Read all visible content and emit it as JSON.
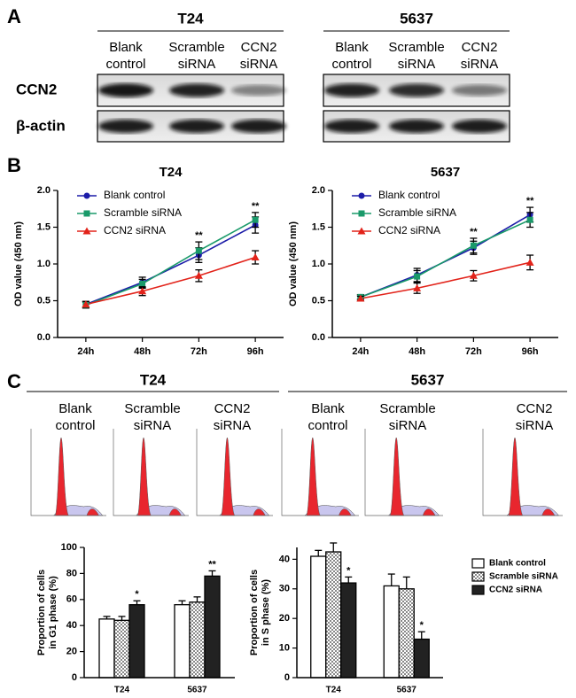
{
  "panel_labels": [
    "A",
    "B",
    "C"
  ],
  "blot": {
    "groups": [
      {
        "name": "T24",
        "lanes": [
          [
            "Blank",
            "control"
          ],
          [
            "Scramble",
            "siRNA"
          ],
          [
            "CCN2",
            "siRNA"
          ]
        ]
      },
      {
        "name": "5637",
        "lanes": [
          [
            "Blank",
            "control"
          ],
          [
            "Scramble",
            "siRNA"
          ],
          [
            "CCN2",
            "siRNA"
          ]
        ]
      }
    ],
    "rows": [
      "CCN2",
      "β-actin"
    ]
  },
  "flow": {
    "groups": [
      {
        "name": "T24",
        "columns": [
          [
            "Blank",
            "control"
          ],
          [
            "Scramble",
            "siRNA"
          ],
          [
            "CCN2",
            "siRNA"
          ]
        ]
      },
      {
        "name": "5637",
        "columns": [
          [
            "Blank",
            "control"
          ],
          [
            "Scramble",
            "siRNA"
          ],
          [
            "CCN2",
            "siRNA"
          ]
        ]
      }
    ]
  },
  "chart_data": [
    {
      "type": "line",
      "title": "T24",
      "ylabel": "OD value (450 nm)",
      "categories": [
        "24h",
        "48h",
        "72h",
        "96h"
      ],
      "ylim": [
        0,
        2
      ],
      "yticks": [
        {
          "value": 0,
          "label": "0.0"
        },
        0.5,
        {
          "value": 1,
          "label": "1.0"
        },
        1.5,
        {
          "value": 2,
          "label": "2.0"
        }
      ],
      "legend": true,
      "annotations": [
        null,
        null,
        "**",
        "**"
      ],
      "series": [
        {
          "name": "Blank control",
          "color": "#1c1ca8",
          "marker": "circle",
          "values": [
            0.45,
            0.75,
            1.12,
            1.53
          ],
          "errors": [
            0.04,
            0.07,
            0.1,
            0.11
          ]
        },
        {
          "name": "Scramble siRNA",
          "color": "#1a9a6a",
          "marker": "square",
          "values": [
            0.44,
            0.73,
            1.18,
            1.6
          ],
          "errors": [
            0.04,
            0.06,
            0.12,
            0.1
          ]
        },
        {
          "name": "CCN2 siRNA",
          "color": "#e2231a",
          "marker": "triangle",
          "values": [
            0.45,
            0.63,
            0.84,
            1.09
          ],
          "errors": [
            0.04,
            0.06,
            0.08,
            0.09
          ]
        }
      ]
    },
    {
      "type": "line",
      "title": "5637",
      "ylabel": "OD value (450 nm)",
      "categories": [
        "24h",
        "48h",
        "72h",
        "96h"
      ],
      "ylim": [
        0,
        2
      ],
      "yticks": [
        {
          "value": 0,
          "label": "0.0"
        },
        0.5,
        {
          "value": 1,
          "label": "1.0"
        },
        1.5,
        {
          "value": 2,
          "label": "2.0"
        }
      ],
      "legend": true,
      "annotations": [
        null,
        null,
        "**",
        "**"
      ],
      "series": [
        {
          "name": "Blank control",
          "color": "#1c1ca8",
          "marker": "circle",
          "values": [
            0.55,
            0.85,
            1.22,
            1.67
          ],
          "errors": [
            0.03,
            0.09,
            0.09,
            0.1
          ]
        },
        {
          "name": "Scramble siRNA",
          "color": "#1a9a6a",
          "marker": "square",
          "values": [
            0.55,
            0.83,
            1.25,
            1.6
          ],
          "errors": [
            0.03,
            0.08,
            0.1,
            0.1
          ]
        },
        {
          "name": "CCN2 siRNA",
          "color": "#e2231a",
          "marker": "triangle",
          "values": [
            0.53,
            0.67,
            0.84,
            1.02
          ],
          "errors": [
            0.03,
            0.07,
            0.07,
            0.1
          ]
        }
      ]
    },
    {
      "type": "bar",
      "ylabel": [
        "Proportion of cells",
        "in G1 phase (%)"
      ],
      "categories": [
        "T24",
        "5637"
      ],
      "ylim": [
        0,
        100
      ],
      "yticks": [
        0,
        20,
        40,
        60,
        80,
        100
      ],
      "legend": false,
      "series": [
        {
          "color": "#ffffff",
          "values": [
            45,
            56
          ],
          "errors": [
            2,
            3
          ]
        },
        {
          "color": "#cccccc",
          "pattern": "checker",
          "values": [
            44,
            58
          ],
          "errors": [
            3,
            4
          ]
        },
        {
          "color": "#222222",
          "values": [
            56,
            78
          ],
          "errors": [
            3,
            4
          ],
          "annotations": [
            "*",
            "**"
          ]
        }
      ]
    },
    {
      "type": "bar",
      "ylabel": [
        "Proportion of cells",
        "in S phase (%)"
      ],
      "categories": [
        "T24",
        "5637"
      ],
      "ylim": [
        0,
        44
      ],
      "yticks": [
        0,
        10,
        20,
        30,
        40
      ],
      "legend": true,
      "series": [
        {
          "name": "Blank control",
          "color": "#ffffff",
          "values": [
            41,
            31
          ],
          "errors": [
            2,
            4
          ]
        },
        {
          "name": "Scramble siRNA",
          "color": "#cccccc",
          "pattern": "checker",
          "values": [
            42.5,
            30
          ],
          "errors": [
            3,
            4
          ]
        },
        {
          "name": "CCN2 siRNA",
          "color": "#222222",
          "values": [
            32,
            13
          ],
          "errors": [
            2,
            2.5
          ],
          "annotations": [
            "*",
            "*"
          ]
        }
      ]
    }
  ]
}
